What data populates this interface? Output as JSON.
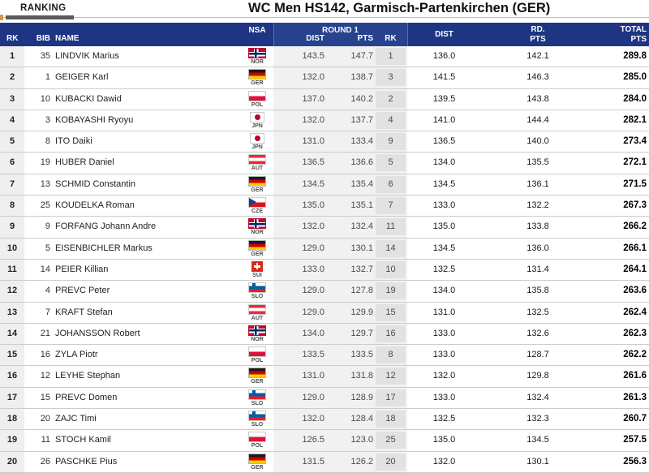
{
  "page": {
    "tab_label": "RANKING",
    "title": "WC Men HS142, Garmisch-Partenkirchen (GER)"
  },
  "colors": {
    "header_bg": "#1d3583",
    "round1_header_bg": "#27428e",
    "round1_section_bg": "#f1f1f1",
    "round1_rank_cell_bg": "#e2e2e2",
    "rank_column_bg": "#efefef",
    "tab_accent": "#d79b45",
    "tab_underline": "#5a5a5a",
    "row_divider": "#cccccc"
  },
  "table": {
    "headers": {
      "rk": "RK",
      "bib": "BIB",
      "name": "NAME",
      "nsa": "NSA",
      "round1": "ROUND 1",
      "r1_dist": "DIST",
      "r1_pts": "PTS",
      "r1_rk": "RK",
      "dist": "DIST",
      "rd_pts_line1": "RD.",
      "rd_pts_line2": "PTS",
      "total_line1": "TOTAL",
      "total_line2": "PTS"
    },
    "rows": [
      {
        "rk": "1",
        "bib": "35",
        "name": "LINDVIK Marius",
        "nsa": "NOR",
        "r1_dist": "143.5",
        "r1_pts": "147.7",
        "r1_rk": "1",
        "dist": "136.0",
        "rd_pts": "142.1",
        "total": "289.8"
      },
      {
        "rk": "2",
        "bib": "1",
        "name": "GEIGER Karl",
        "nsa": "GER",
        "r1_dist": "132.0",
        "r1_pts": "138.7",
        "r1_rk": "3",
        "dist": "141.5",
        "rd_pts": "146.3",
        "total": "285.0"
      },
      {
        "rk": "3",
        "bib": "10",
        "name": "KUBACKI Dawid",
        "nsa": "POL",
        "r1_dist": "137.0",
        "r1_pts": "140.2",
        "r1_rk": "2",
        "dist": "139.5",
        "rd_pts": "143.8",
        "total": "284.0"
      },
      {
        "rk": "4",
        "bib": "3",
        "name": "KOBAYASHI Ryoyu",
        "nsa": "JPN",
        "r1_dist": "132.0",
        "r1_pts": "137.7",
        "r1_rk": "4",
        "dist": "141.0",
        "rd_pts": "144.4",
        "total": "282.1"
      },
      {
        "rk": "5",
        "bib": "8",
        "name": "ITO Daiki",
        "nsa": "JPN",
        "r1_dist": "131.0",
        "r1_pts": "133.4",
        "r1_rk": "9",
        "dist": "136.5",
        "rd_pts": "140.0",
        "total": "273.4"
      },
      {
        "rk": "6",
        "bib": "19",
        "name": "HUBER Daniel",
        "nsa": "AUT",
        "r1_dist": "136.5",
        "r1_pts": "136.6",
        "r1_rk": "5",
        "dist": "134.0",
        "rd_pts": "135.5",
        "total": "272.1"
      },
      {
        "rk": "7",
        "bib": "13",
        "name": "SCHMID Constantin",
        "nsa": "GER",
        "r1_dist": "134.5",
        "r1_pts": "135.4",
        "r1_rk": "6",
        "dist": "134.5",
        "rd_pts": "136.1",
        "total": "271.5"
      },
      {
        "rk": "8",
        "bib": "25",
        "name": "KOUDELKA Roman",
        "nsa": "CZE",
        "r1_dist": "135.0",
        "r1_pts": "135.1",
        "r1_rk": "7",
        "dist": "133.0",
        "rd_pts": "132.2",
        "total": "267.3"
      },
      {
        "rk": "9",
        "bib": "9",
        "name": "FORFANG Johann Andre",
        "nsa": "NOR",
        "r1_dist": "132.0",
        "r1_pts": "132.4",
        "r1_rk": "11",
        "dist": "135.0",
        "rd_pts": "133.8",
        "total": "266.2"
      },
      {
        "rk": "10",
        "bib": "5",
        "name": "EISENBICHLER Markus",
        "nsa": "GER",
        "r1_dist": "129.0",
        "r1_pts": "130.1",
        "r1_rk": "14",
        "dist": "134.5",
        "rd_pts": "136.0",
        "total": "266.1"
      },
      {
        "rk": "11",
        "bib": "14",
        "name": "PEIER Killian",
        "nsa": "SUI",
        "r1_dist": "133.0",
        "r1_pts": "132.7",
        "r1_rk": "10",
        "dist": "132.5",
        "rd_pts": "131.4",
        "total": "264.1"
      },
      {
        "rk": "12",
        "bib": "4",
        "name": "PREVC Peter",
        "nsa": "SLO",
        "r1_dist": "129.0",
        "r1_pts": "127.8",
        "r1_rk": "19",
        "dist": "134.0",
        "rd_pts": "135.8",
        "total": "263.6"
      },
      {
        "rk": "13",
        "bib": "7",
        "name": "KRAFT Stefan",
        "nsa": "AUT",
        "r1_dist": "129.0",
        "r1_pts": "129.9",
        "r1_rk": "15",
        "dist": "131.0",
        "rd_pts": "132.5",
        "total": "262.4"
      },
      {
        "rk": "14",
        "bib": "21",
        "name": "JOHANSSON Robert",
        "nsa": "NOR",
        "r1_dist": "134.0",
        "r1_pts": "129.7",
        "r1_rk": "16",
        "dist": "133.0",
        "rd_pts": "132.6",
        "total": "262.3"
      },
      {
        "rk": "15",
        "bib": "16",
        "name": "ZYLA Piotr",
        "nsa": "POL",
        "r1_dist": "133.5",
        "r1_pts": "133.5",
        "r1_rk": "8",
        "dist": "133.0",
        "rd_pts": "128.7",
        "total": "262.2"
      },
      {
        "rk": "16",
        "bib": "12",
        "name": "LEYHE Stephan",
        "nsa": "GER",
        "r1_dist": "131.0",
        "r1_pts": "131.8",
        "r1_rk": "12",
        "dist": "132.0",
        "rd_pts": "129.8",
        "total": "261.6"
      },
      {
        "rk": "17",
        "bib": "15",
        "name": "PREVC Domen",
        "nsa": "SLO",
        "r1_dist": "129.0",
        "r1_pts": "128.9",
        "r1_rk": "17",
        "dist": "133.0",
        "rd_pts": "132.4",
        "total": "261.3"
      },
      {
        "rk": "18",
        "bib": "20",
        "name": "ZAJC Timi",
        "nsa": "SLO",
        "r1_dist": "132.0",
        "r1_pts": "128.4",
        "r1_rk": "18",
        "dist": "132.5",
        "rd_pts": "132.3",
        "total": "260.7"
      },
      {
        "rk": "19",
        "bib": "11",
        "name": "STOCH Kamil",
        "nsa": "POL",
        "r1_dist": "126.5",
        "r1_pts": "123.0",
        "r1_rk": "25",
        "dist": "135.0",
        "rd_pts": "134.5",
        "total": "257.5"
      },
      {
        "rk": "20",
        "bib": "26",
        "name": "PASCHKE Pius",
        "nsa": "GER",
        "r1_dist": "131.5",
        "r1_pts": "126.2",
        "r1_rk": "20",
        "dist": "132.0",
        "rd_pts": "130.1",
        "total": "256.3"
      }
    ]
  }
}
